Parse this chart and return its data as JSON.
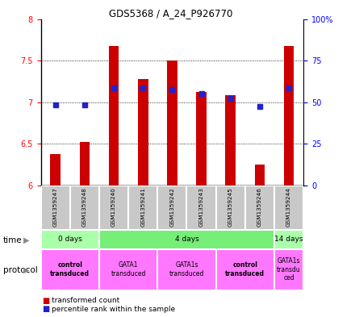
{
  "title": "GDS5368 / A_24_P926770",
  "samples": [
    "GSM1359247",
    "GSM1359248",
    "GSM1359240",
    "GSM1359241",
    "GSM1359242",
    "GSM1359243",
    "GSM1359245",
    "GSM1359246",
    "GSM1359244"
  ],
  "bar_base": 6.0,
  "bar_tops": [
    6.38,
    6.52,
    7.68,
    7.28,
    7.5,
    7.12,
    7.08,
    6.25,
    7.68
  ],
  "percentile_values": [
    6.97,
    6.97,
    7.17,
    7.17,
    7.15,
    7.1,
    7.05,
    6.95,
    7.17
  ],
  "ylim_left": [
    6.0,
    8.0
  ],
  "ylim_right": [
    0,
    100
  ],
  "yticks_left": [
    6.0,
    6.5,
    7.0,
    7.5,
    8.0
  ],
  "ytick_labels_left": [
    "6",
    "6.5",
    "7",
    "7.5",
    "8"
  ],
  "yticks_right": [
    0,
    25,
    50,
    75,
    100
  ],
  "ytick_labels_right": [
    "0",
    "25",
    "50",
    "75",
    "100%"
  ],
  "bar_color": "#cc0000",
  "dot_color": "#2222cc",
  "time_groups": [
    {
      "label": "0 days",
      "start": 0,
      "end": 2,
      "color": "#aaffaa"
    },
    {
      "label": "4 days",
      "start": 2,
      "end": 8,
      "color": "#77ee77"
    },
    {
      "label": "14 days",
      "start": 8,
      "end": 9,
      "color": "#aaffaa"
    }
  ],
  "protocol_groups": [
    {
      "label": "control\ntransduced",
      "start": 0,
      "end": 2,
      "color": "#ff77ff",
      "bold": true
    },
    {
      "label": "GATA1\ntransduced",
      "start": 2,
      "end": 4,
      "color": "#ff77ff",
      "bold": false
    },
    {
      "label": "GATA1s\ntransduced",
      "start": 4,
      "end": 6,
      "color": "#ff77ff",
      "bold": false
    },
    {
      "label": "control\ntransduced",
      "start": 6,
      "end": 8,
      "color": "#ff77ff",
      "bold": true
    },
    {
      "label": "GATA1s\ntransdu\nced",
      "start": 8,
      "end": 9,
      "color": "#ff77ff",
      "bold": false
    }
  ],
  "legend_bar_label": "transformed count",
  "legend_dot_label": "percentile rank within the sample"
}
